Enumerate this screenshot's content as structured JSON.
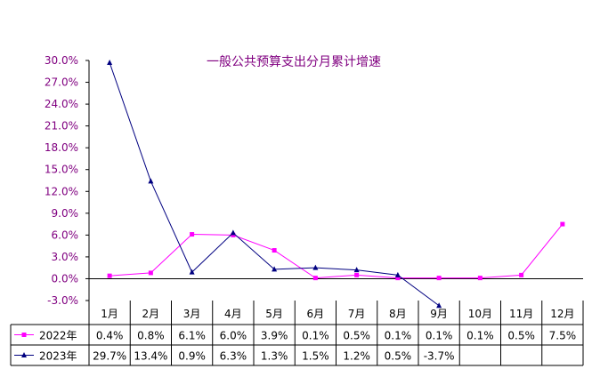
{
  "chart_data": {
    "type": "line",
    "title": "一般公共预算支出分月累计增速",
    "categories": [
      "1月",
      "2月",
      "3月",
      "4月",
      "5月",
      "6月",
      "7月",
      "8月",
      "9月",
      "10月",
      "11月",
      "12月"
    ],
    "y_ticks": [
      "30.0%",
      "27.0%",
      "24.0%",
      "21.0%",
      "18.0%",
      "15.0%",
      "12.0%",
      "9.0%",
      "6.0%",
      "3.0%",
      "0.0%",
      "-3.0%"
    ],
    "ylim": [
      -3.0,
      30.0
    ],
    "grid": false,
    "legend": "data-table",
    "series": [
      {
        "name": "2022年",
        "color": "#ff00ff",
        "marker": "square",
        "values": [
          0.4,
          0.8,
          6.1,
          6.0,
          3.9,
          0.1,
          0.5,
          0.1,
          0.1,
          0.1,
          0.5,
          7.5
        ],
        "labels": [
          "0.4%",
          "0.8%",
          "6.1%",
          "6.0%",
          "3.9%",
          "0.1%",
          "0.5%",
          "0.1%",
          "0.1%",
          "0.1%",
          "0.5%",
          "7.5%"
        ]
      },
      {
        "name": "2023年",
        "color": "#000080",
        "marker": "triangle",
        "values": [
          29.7,
          13.4,
          0.9,
          6.3,
          1.3,
          1.5,
          1.2,
          0.5,
          -3.7,
          null,
          null,
          null
        ],
        "labels": [
          "29.7%",
          "13.4%",
          "0.9%",
          "6.3%",
          "1.3%",
          "1.5%",
          "1.2%",
          "0.5%",
          "-3.7%",
          "",
          "",
          ""
        ]
      }
    ]
  }
}
